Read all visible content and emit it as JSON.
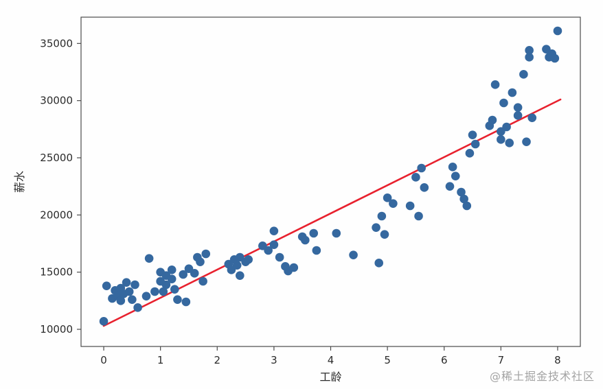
{
  "watermark": {
    "text": "@稀土掘金技术社区"
  },
  "chart_data": {
    "type": "scatter",
    "title": "",
    "xlabel": "工龄",
    "ylabel": "薪水",
    "xlim": [
      -0.4,
      8.4
    ],
    "ylim": [
      8500,
      37300
    ],
    "xticks": [
      0,
      1,
      2,
      3,
      4,
      5,
      6,
      7,
      8
    ],
    "yticks": [
      10000,
      15000,
      20000,
      25000,
      30000,
      35000
    ],
    "grid": false,
    "legend": false,
    "point_color": "#35689f",
    "line_color": "#e8212e",
    "axis_color": "#4a4a4a",
    "tick_text_color": "#2b2b2b",
    "points": [
      [
        0.0,
        10700
      ],
      [
        0.05,
        13800
      ],
      [
        0.15,
        12700
      ],
      [
        0.2,
        13400
      ],
      [
        0.25,
        12900
      ],
      [
        0.3,
        13600
      ],
      [
        0.3,
        12500
      ],
      [
        0.35,
        13100
      ],
      [
        0.4,
        14100
      ],
      [
        0.45,
        13300
      ],
      [
        0.5,
        12600
      ],
      [
        0.55,
        13900
      ],
      [
        0.6,
        11900
      ],
      [
        0.75,
        12900
      ],
      [
        0.8,
        16200
      ],
      [
        0.9,
        13300
      ],
      [
        1.0,
        15000
      ],
      [
        1.0,
        14200
      ],
      [
        1.05,
        13300
      ],
      [
        1.1,
        14700
      ],
      [
        1.1,
        13900
      ],
      [
        1.2,
        15200
      ],
      [
        1.2,
        14400
      ],
      [
        1.25,
        13500
      ],
      [
        1.3,
        12600
      ],
      [
        1.4,
        14800
      ],
      [
        1.45,
        12400
      ],
      [
        1.5,
        15300
      ],
      [
        1.6,
        14900
      ],
      [
        1.65,
        16300
      ],
      [
        1.7,
        15900
      ],
      [
        1.75,
        14200
      ],
      [
        1.8,
        16600
      ],
      [
        2.2,
        15700
      ],
      [
        2.25,
        15200
      ],
      [
        2.3,
        16100
      ],
      [
        2.35,
        15600
      ],
      [
        2.4,
        16300
      ],
      [
        2.4,
        14700
      ],
      [
        2.5,
        15900
      ],
      [
        2.55,
        16100
      ],
      [
        2.8,
        17300
      ],
      [
        2.9,
        16900
      ],
      [
        3.0,
        18600
      ],
      [
        3.0,
        17400
      ],
      [
        3.1,
        16300
      ],
      [
        3.2,
        15500
      ],
      [
        3.25,
        15100
      ],
      [
        3.35,
        15400
      ],
      [
        3.5,
        18100
      ],
      [
        3.55,
        17800
      ],
      [
        3.7,
        18400
      ],
      [
        3.75,
        16900
      ],
      [
        4.1,
        18400
      ],
      [
        4.4,
        16500
      ],
      [
        4.8,
        18900
      ],
      [
        4.85,
        15800
      ],
      [
        4.9,
        19900
      ],
      [
        4.95,
        18300
      ],
      [
        5.0,
        21500
      ],
      [
        5.1,
        21000
      ],
      [
        5.4,
        20800
      ],
      [
        5.5,
        23300
      ],
      [
        5.55,
        19900
      ],
      [
        5.6,
        24100
      ],
      [
        5.65,
        22400
      ],
      [
        6.1,
        22500
      ],
      [
        6.15,
        24200
      ],
      [
        6.2,
        23400
      ],
      [
        6.3,
        22000
      ],
      [
        6.35,
        21400
      ],
      [
        6.4,
        20800
      ],
      [
        6.45,
        25400
      ],
      [
        6.5,
        27000
      ],
      [
        6.55,
        26200
      ],
      [
        6.8,
        27800
      ],
      [
        6.85,
        28300
      ],
      [
        6.9,
        31400
      ],
      [
        7.0,
        26600
      ],
      [
        7.0,
        27300
      ],
      [
        7.05,
        29800
      ],
      [
        7.1,
        27700
      ],
      [
        7.15,
        26300
      ],
      [
        7.2,
        30700
      ],
      [
        7.3,
        29400
      ],
      [
        7.3,
        28700
      ],
      [
        7.4,
        32300
      ],
      [
        7.45,
        26400
      ],
      [
        7.5,
        33800
      ],
      [
        7.5,
        34400
      ],
      [
        7.55,
        28500
      ],
      [
        7.8,
        34500
      ],
      [
        7.85,
        33800
      ],
      [
        7.9,
        34100
      ],
      [
        7.95,
        33700
      ],
      [
        8.0,
        36100
      ]
    ],
    "regression_line": {
      "x": [
        0.0,
        8.05
      ],
      "y": [
        10300,
        30100
      ]
    }
  }
}
